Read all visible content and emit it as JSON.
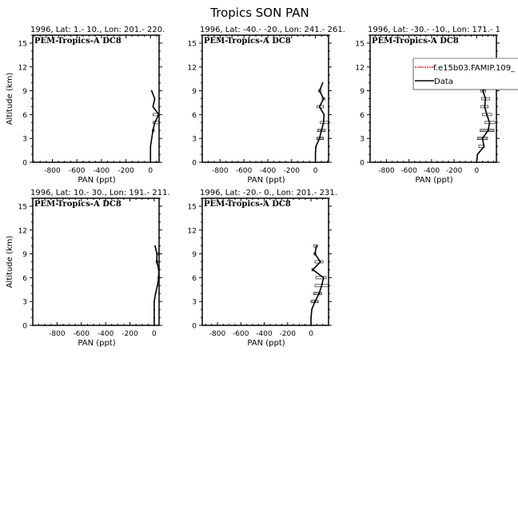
{
  "title": "Tropics SON PAN",
  "legend": {
    "placement": "in third panel, top-right",
    "entries": [
      {
        "label": "f.e15b03.FAMIP.109_",
        "color": "#ff0000",
        "style": "dashed"
      },
      {
        "label": "Data",
        "color": "#000000",
        "style": "solid"
      }
    ]
  },
  "chart_data": [
    {
      "type": "line",
      "title": "1996, Lat: 1.- 10., Lon: 201.- 220.",
      "campaign_label": "PEM-Tropics-A DC8",
      "xlabel": "PAN (ppt)",
      "ylabel": "Altitude (km)",
      "xlim": [
        -960,
        70
      ],
      "ylim": [
        0,
        16
      ],
      "xticks": [
        -800,
        -600,
        -400,
        -200,
        0
      ],
      "yticks": [
        0,
        3,
        6,
        9,
        12,
        15
      ],
      "series": [
        {
          "name": "Data",
          "altitude": [
            0,
            1,
            2,
            3,
            4,
            5,
            6,
            7,
            8,
            9
          ],
          "pan": [
            0,
            0,
            0,
            10,
            20,
            35,
            68,
            20,
            35,
            9
          ]
        }
      ],
      "error_boxes": [
        {
          "altitude": 4,
          "range": [
            15,
            30
          ],
          "fill": "gray"
        },
        {
          "altitude": 5,
          "range": [
            20,
            70
          ],
          "fill": "hollow"
        },
        {
          "altitude": 6,
          "range": [
            20,
            60
          ],
          "fill": "hollow"
        }
      ]
    },
    {
      "type": "line",
      "title": "1996, Lat: -40.- -20., Lon: 241.- 261.",
      "campaign_label": "PEM-Tropics-A DC8",
      "xlabel": "PAN (ppt)",
      "ylabel": "",
      "xlim": [
        -950,
        110
      ],
      "ylim": [
        0,
        16
      ],
      "xticks": [
        -800,
        -600,
        -400,
        -200,
        0
      ],
      "yticks": [
        0,
        3,
        6,
        9,
        12,
        15
      ],
      "series": [
        {
          "name": "Data",
          "altitude": [
            0,
            1,
            2,
            3,
            4,
            5,
            6,
            7,
            8,
            9,
            10
          ],
          "pan": [
            0,
            0,
            4,
            34,
            50,
            68,
            72,
            34,
            68,
            34,
            61
          ]
        }
      ],
      "error_boxes": [
        {
          "altitude": 3,
          "range": [
            11,
            68
          ],
          "fill": "gray"
        },
        {
          "altitude": 4,
          "range": [
            18,
            83
          ],
          "fill": "gray"
        },
        {
          "altitude": 5,
          "range": [
            41,
            113
          ],
          "fill": "hollow"
        },
        {
          "altitude": 7,
          "range": [
            14,
            68
          ],
          "fill": "hollow"
        },
        {
          "altitude": 8,
          "range": [
            56,
            79
          ],
          "fill": "hollow"
        },
        {
          "altitude": 9,
          "range": [
            27,
            50
          ],
          "fill": "hollow"
        }
      ]
    },
    {
      "type": "line",
      "title": "1996, Lat: -30.- -10., Lon: 171.- 1",
      "campaign_label": "PEM-Tropics-A DC8",
      "xlabel": "PAN (ppt)",
      "ylabel": "",
      "xlim": [
        -945,
        175
      ],
      "ylim": [
        0,
        16
      ],
      "xticks": [
        -800,
        -600,
        -400,
        -200,
        0
      ],
      "yticks": [
        0,
        3,
        6,
        9,
        12,
        15
      ],
      "series": [
        {
          "name": "Data",
          "altitude": [
            0,
            1,
            2,
            3,
            4,
            5,
            6,
            7,
            8,
            9,
            10
          ],
          "pan": [
            0,
            7,
            66,
            50,
            102,
            114,
            90,
            71,
            78,
            55,
            150
          ]
        }
      ],
      "error_boxes": [
        {
          "altitude": 2,
          "range": [
            19,
            66
          ],
          "fill": "hollow"
        },
        {
          "altitude": 3,
          "range": [
            7,
            97
          ],
          "fill": "gray"
        },
        {
          "altitude": 4,
          "range": [
            31,
            154
          ],
          "fill": "gray"
        },
        {
          "altitude": 5,
          "range": [
            74,
            162
          ],
          "fill": "hollow"
        },
        {
          "altitude": 6,
          "range": [
            50,
            133
          ],
          "fill": "hollow"
        },
        {
          "altitude": 7,
          "range": [
            38,
            102
          ],
          "fill": "hollow"
        },
        {
          "altitude": 8,
          "range": [
            43,
            116
          ],
          "fill": "hollow"
        },
        {
          "altitude": 9,
          "range": [
            36,
            78
          ],
          "fill": "hollow"
        },
        {
          "altitude": 10,
          "range": [
            43,
            178
          ],
          "fill": "hollow"
        }
      ]
    },
    {
      "type": "line",
      "title": "1996, Lat: 10.- 30., Lon: 191.- 211.",
      "campaign_label": "PEM-Tropics-A DC8",
      "xlabel": "PAN (ppt)",
      "ylabel": "Altitude (km)",
      "xlim": [
        -1000,
        40
      ],
      "ylim": [
        0,
        16
      ],
      "xticks": [
        -800,
        -600,
        -400,
        -200,
        0
      ],
      "yticks": [
        0,
        3,
        6,
        9,
        12,
        15
      ],
      "series": [
        {
          "name": "Data",
          "altitude": [
            0,
            1,
            2,
            3,
            4,
            5,
            6,
            7,
            8,
            9,
            10
          ],
          "pan": [
            0,
            0,
            0,
            0,
            11,
            26,
            37,
            37,
            22,
            22,
            7
          ]
        }
      ],
      "error_boxes": [
        {
          "altitude": 6,
          "range": [
            30,
            40
          ],
          "fill": "hollow"
        },
        {
          "altitude": 8,
          "range": [
            15,
            30
          ],
          "fill": "hollow"
        },
        {
          "altitude": 9,
          "range": [
            20,
            35
          ],
          "fill": "gray"
        }
      ]
    },
    {
      "type": "line",
      "title": "1996, Lat: -20.- 0., Lon: 201.- 231.",
      "campaign_label": "PEM-Tropics-A DC8",
      "xlabel": "PAN (ppt)",
      "ylabel": "",
      "xlim": [
        -930,
        150
      ],
      "ylim": [
        0,
        16
      ],
      "xticks": [
        -800,
        -600,
        -400,
        -200,
        0
      ],
      "yticks": [
        0,
        3,
        6,
        9,
        12,
        15
      ],
      "series": [
        {
          "name": "Data",
          "altitude": [
            0,
            1,
            2,
            3,
            4,
            5,
            6,
            7,
            8,
            9,
            10
          ],
          "pan": [
            0,
            0,
            7,
            34,
            69,
            91,
            107,
            16,
            80,
            34,
            46
          ]
        }
      ],
      "error_boxes": [
        {
          "altitude": 3,
          "range": [
            0,
            62
          ],
          "fill": "gray"
        },
        {
          "altitude": 4,
          "range": [
            23,
            91
          ],
          "fill": "gray"
        },
        {
          "altitude": 5,
          "range": [
            34,
            153
          ],
          "fill": "hollow"
        },
        {
          "altitude": 6,
          "range": [
            41,
            130
          ],
          "fill": "hollow"
        },
        {
          "altitude": 7,
          "range": [
            7,
            25
          ],
          "fill": "hollow"
        },
        {
          "altitude": 8,
          "range": [
            34,
            103
          ],
          "fill": "hollow"
        },
        {
          "altitude": 9,
          "range": [
            25,
            42
          ],
          "fill": "hollow"
        },
        {
          "altitude": 10,
          "range": [
            23,
            57
          ],
          "fill": "hollow"
        }
      ]
    }
  ]
}
